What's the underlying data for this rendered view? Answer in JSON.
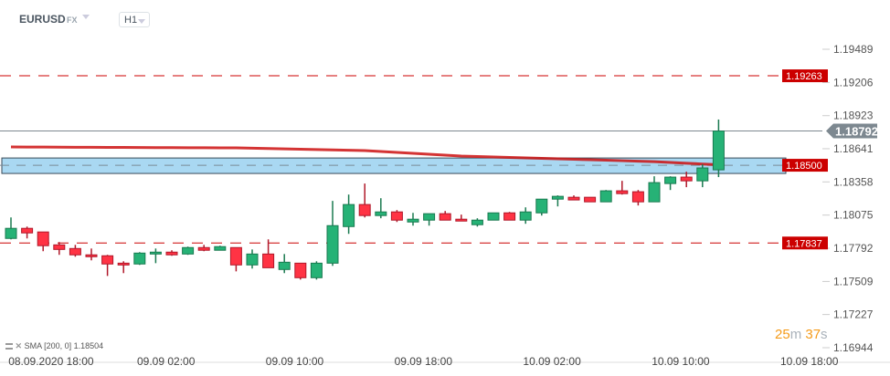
{
  "header": {
    "symbol": "EURUSD",
    "market": "FX",
    "timeframe": "H1"
  },
  "colors": {
    "up": "#26b276",
    "up_border": "#1a7a50",
    "down": "#ff3344",
    "down_border": "#b0182a",
    "level": "#cc0000",
    "sma": "#cc1111",
    "zone": "#a9d8f2",
    "current": "#7d8890"
  },
  "price_axis": {
    "ticks": [
      "1.19489",
      "1.19206",
      "1.18923",
      "1.18641",
      "1.18358",
      "1.18075",
      "1.17792",
      "1.17509",
      "1.17227",
      "1.16944"
    ],
    "min": 1.16944,
    "max": 1.19489
  },
  "time_axis": {
    "labels": [
      {
        "text": "08.09.2020  18:00",
        "index": 2
      },
      {
        "text": "09.09  02:00",
        "index": 10
      },
      {
        "text": "09.09  10:00",
        "index": 18
      },
      {
        "text": "09.09  18:00",
        "index": 26
      },
      {
        "text": "10.09  02:00",
        "index": 34
      },
      {
        "text": "10.09  10:00",
        "index": 42
      },
      {
        "text": "10.09  18:00",
        "index": 50
      }
    ]
  },
  "levels": [
    {
      "price": 1.19263,
      "label": "1.19263",
      "style": "dashed-red"
    },
    {
      "price": 1.185,
      "label": "1.18500",
      "style": "zone"
    },
    {
      "price": 1.17837,
      "label": "1.17837",
      "style": "dashed-red"
    }
  ],
  "zone": {
    "top": 1.18562,
    "bottom": 1.1843
  },
  "current_price": {
    "price": 1.18792,
    "label": "1.18792"
  },
  "sma": {
    "legend": "SMA [200, 0] 1.18504",
    "anchors": [
      [
        0,
        1.18656
      ],
      [
        14,
        1.18648
      ],
      [
        22,
        1.18625
      ],
      [
        28,
        1.18578
      ],
      [
        34,
        1.18555
      ],
      [
        40,
        1.18531
      ],
      [
        44,
        1.18504
      ]
    ]
  },
  "countdown": {
    "minutes": "25",
    "m": "m",
    "seconds": "37",
    "s": "s"
  },
  "candles": [
    [
      1.17876,
      1.18055,
      1.17868,
      1.17962
    ],
    [
      1.17962,
      1.17977,
      1.17876,
      1.17923
    ],
    [
      1.17931,
      1.17931,
      1.17767,
      1.17814
    ],
    [
      1.17821,
      1.17845,
      1.17736,
      1.17782
    ],
    [
      1.1779,
      1.17821,
      1.1772,
      1.17736
    ],
    [
      1.17736,
      1.1779,
      1.17689,
      1.1772
    ],
    [
      1.17728,
      1.17736,
      1.17556,
      1.17658
    ],
    [
      1.17665,
      1.17681,
      1.1758,
      1.1765
    ],
    [
      1.17658,
      1.17759,
      1.1765,
      1.17751
    ],
    [
      1.17743,
      1.1779,
      1.17665,
      1.17759
    ],
    [
      1.17759,
      1.17775,
      1.17728,
      1.17736
    ],
    [
      1.17743,
      1.17806,
      1.17736,
      1.17798
    ],
    [
      1.17798,
      1.17821,
      1.17767,
      1.17775
    ],
    [
      1.17775,
      1.17814,
      1.17775,
      1.17806
    ],
    [
      1.17798,
      1.17798,
      1.17595,
      1.1765
    ],
    [
      1.1765,
      1.17782,
      1.17619,
      1.17743
    ],
    [
      1.17743,
      1.17868,
      1.17626,
      1.17626
    ],
    [
      1.17611,
      1.17743,
      1.1758,
      1.17673
    ],
    [
      1.17665,
      1.17665,
      1.17525,
      1.17541
    ],
    [
      1.17541,
      1.17681,
      1.17525,
      1.17665
    ],
    [
      1.17665,
      1.18196,
      1.17642,
      1.17985
    ],
    [
      1.17977,
      1.1825,
      1.17915,
      1.18165
    ],
    [
      1.18165,
      1.18344,
      1.18055,
      1.18071
    ],
    [
      1.18071,
      1.18219,
      1.18048,
      1.18102
    ],
    [
      1.18102,
      1.18118,
      1.18016,
      1.18032
    ],
    [
      1.18016,
      1.18094,
      1.17985,
      1.1804
    ],
    [
      1.18032,
      1.18087,
      1.17985,
      1.18087
    ],
    [
      1.18087,
      1.1811,
      1.18032,
      1.18032
    ],
    [
      1.1804,
      1.18079,
      1.18024,
      1.18024
    ],
    [
      1.17993,
      1.18048,
      1.17977,
      1.18032
    ],
    [
      1.18032,
      1.18094,
      1.18032,
      1.18094
    ],
    [
      1.18094,
      1.18102,
      1.18032,
      1.18032
    ],
    [
      1.18032,
      1.18141,
      1.18001,
      1.18102
    ],
    [
      1.18094,
      1.18211,
      1.18071,
      1.18211
    ],
    [
      1.18211,
      1.18243,
      1.18149,
      1.18235
    ],
    [
      1.18227,
      1.18243,
      1.18204,
      1.18204
    ],
    [
      1.18227,
      1.18227,
      1.18188,
      1.18188
    ],
    [
      1.18188,
      1.18289,
      1.18188,
      1.18282
    ],
    [
      1.18282,
      1.18367,
      1.1825,
      1.18258
    ],
    [
      1.18274,
      1.18289,
      1.18157,
      1.18188
    ],
    [
      1.18188,
      1.18406,
      1.18188,
      1.18352
    ],
    [
      1.18344,
      1.18406,
      1.18289,
      1.18399
    ],
    [
      1.18399,
      1.18445,
      1.18313,
      1.18367
    ],
    [
      1.18367,
      1.18508,
      1.18313,
      1.18477
    ],
    [
      1.18461,
      1.1889,
      1.18399,
      1.18792
    ]
  ]
}
